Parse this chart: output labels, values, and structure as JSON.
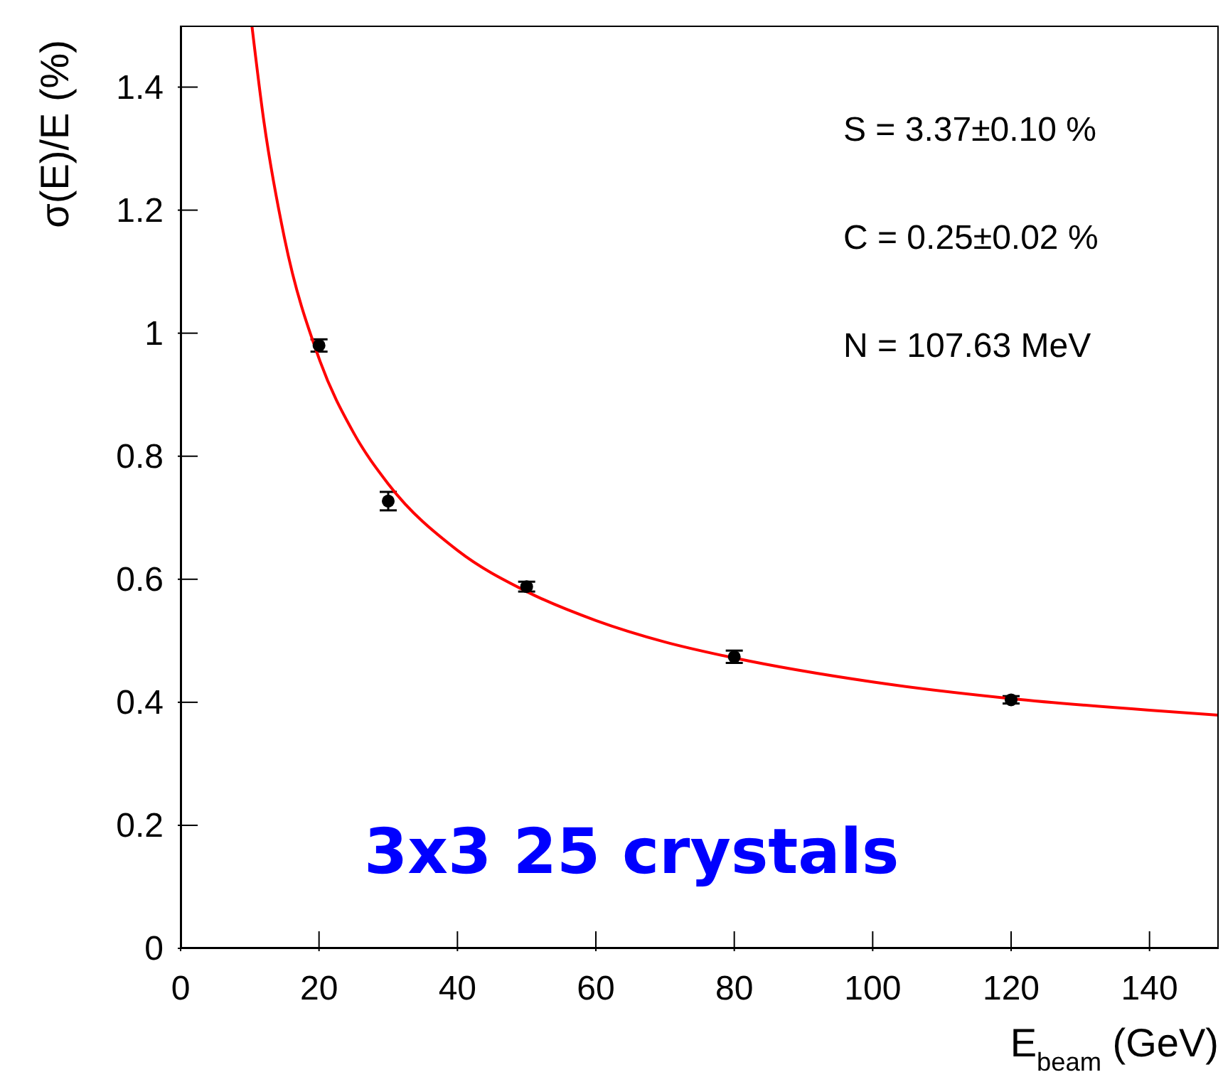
{
  "chart_data": {
    "type": "scatter",
    "xlabel": "E$_{beam}$ (GeV)",
    "ylabel": "σ(E)/E (%)",
    "xlim": [
      0,
      150
    ],
    "xticks": [
      0,
      20,
      40,
      60,
      80,
      100,
      120,
      140
    ],
    "ylim": [
      0,
      1.5
    ],
    "yticks": [
      0,
      0.2,
      0.4,
      0.6,
      0.8,
      1,
      1.2,
      1.4
    ],
    "grid": false,
    "legend": false,
    "series": [
      {
        "color": "#000000",
        "marker": "circle",
        "x": [
          20,
          30,
          50,
          80,
          120
        ],
        "values": [
          0.98,
          0.727,
          0.588,
          0.474,
          0.404
        ],
        "errors": [
          0.01,
          0.015,
          0.008,
          0.01,
          0.006
        ]
      },
      {
        "type": "line",
        "color": "#ff0000",
        "marker": "none",
        "line_style": "solid",
        "x": [
          10.3,
          12,
          15,
          20,
          25,
          30,
          40,
          50,
          60,
          70,
          80,
          100,
          120,
          140,
          150
        ],
        "values": [
          1.5,
          1.347,
          1.155,
          0.959,
          0.838,
          0.755,
          0.647,
          0.58,
          0.533,
          0.498,
          0.472,
          0.433,
          0.406,
          0.387,
          0.379
        ]
      }
    ],
    "annotations": [
      "S = 3.37±0.10 %",
      "C = 0.25±0.02 %",
      "N = 107.63 MeV",
      "3x3 25 crystals"
    ]
  }
}
